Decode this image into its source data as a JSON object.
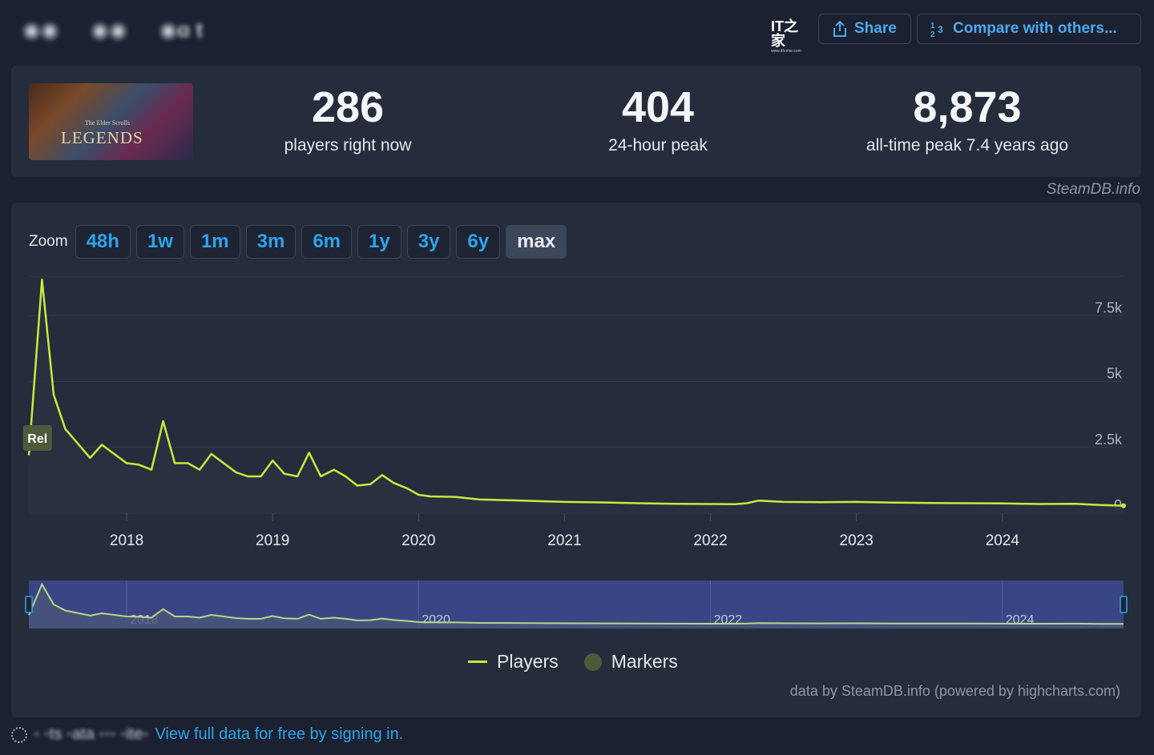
{
  "header": {
    "blurred_tabs": [
      "◉◉",
      "◉◉",
      "◉ɑ t"
    ],
    "logo_text": "IT之家",
    "logo_subtext": "www.ithome.com",
    "share_label": "Share",
    "compare_label": "Compare with others..."
  },
  "cover": {
    "title": "LEGENDS",
    "subtitle": "The Elder Scrolls"
  },
  "stats": [
    {
      "value": "286",
      "label": "players right now"
    },
    {
      "value": "404",
      "label": "24-hour peak"
    },
    {
      "value": "8,873",
      "label": "all-time peak 7.4 years ago"
    }
  ],
  "credit": "SteamDB.info",
  "zoom": {
    "label": "Zoom",
    "options": [
      "48h",
      "1w",
      "1m",
      "3m",
      "6m",
      "1y",
      "3y",
      "6y",
      "max"
    ],
    "active": "max"
  },
  "chart_data": {
    "type": "line",
    "title": "",
    "xlabel": "",
    "ylabel": "",
    "ylim": [
      0,
      9000
    ],
    "y_ticks": [
      {
        "value": 0,
        "label": "0"
      },
      {
        "value": 2500,
        "label": "2.5k"
      },
      {
        "value": 5000,
        "label": "5k"
      },
      {
        "value": 7500,
        "label": "7.5k"
      }
    ],
    "x_ticks": [
      "2018",
      "2019",
      "2020",
      "2021",
      "2022",
      "2023",
      "2024"
    ],
    "navigator_ticks": [
      "2018",
      "2020",
      "2022",
      "2024"
    ],
    "xlim": [
      2017.33,
      2024.83
    ],
    "grid": true,
    "marker": {
      "x": 2017.4,
      "label": "Rel"
    },
    "series": [
      {
        "name": "Players",
        "color": "#c5ec3c",
        "points": [
          [
            2017.33,
            2200
          ],
          [
            2017.42,
            8873
          ],
          [
            2017.5,
            4500
          ],
          [
            2017.58,
            3200
          ],
          [
            2017.75,
            2100
          ],
          [
            2017.83,
            2600
          ],
          [
            2018.0,
            1900
          ],
          [
            2018.08,
            1850
          ],
          [
            2018.17,
            1650
          ],
          [
            2018.25,
            3500
          ],
          [
            2018.33,
            1900
          ],
          [
            2018.42,
            1900
          ],
          [
            2018.5,
            1650
          ],
          [
            2018.58,
            2250
          ],
          [
            2018.75,
            1550
          ],
          [
            2018.83,
            1400
          ],
          [
            2018.92,
            1400
          ],
          [
            2019.0,
            2000
          ],
          [
            2019.08,
            1500
          ],
          [
            2019.17,
            1400
          ],
          [
            2019.25,
            2300
          ],
          [
            2019.33,
            1400
          ],
          [
            2019.42,
            1650
          ],
          [
            2019.5,
            1400
          ],
          [
            2019.58,
            1050
          ],
          [
            2019.67,
            1100
          ],
          [
            2019.75,
            1450
          ],
          [
            2019.83,
            1150
          ],
          [
            2019.92,
            950
          ],
          [
            2020.0,
            700
          ],
          [
            2020.08,
            640
          ],
          [
            2020.25,
            620
          ],
          [
            2020.42,
            520
          ],
          [
            2020.58,
            500
          ],
          [
            2020.75,
            470
          ],
          [
            2021.0,
            430
          ],
          [
            2021.25,
            410
          ],
          [
            2021.5,
            380
          ],
          [
            2021.75,
            360
          ],
          [
            2022.0,
            350
          ],
          [
            2022.17,
            340
          ],
          [
            2022.25,
            380
          ],
          [
            2022.33,
            480
          ],
          [
            2022.5,
            430
          ],
          [
            2022.75,
            420
          ],
          [
            2023.0,
            430
          ],
          [
            2023.25,
            400
          ],
          [
            2023.5,
            390
          ],
          [
            2023.75,
            380
          ],
          [
            2024.0,
            370
          ],
          [
            2024.25,
            350
          ],
          [
            2024.5,
            360
          ],
          [
            2024.67,
            310
          ],
          [
            2024.83,
            286
          ]
        ]
      }
    ],
    "legend": [
      {
        "name": "Players",
        "color": "#c5ec3c"
      },
      {
        "name": "Markers",
        "color": "#4d5a3c"
      }
    ],
    "legend_position": "bottom-center"
  },
  "footnote": "data by SteamDB.info (powered by highcharts.com)",
  "bottom": {
    "blurred_text": "◦ ◦ts ◦ata ◦◦◦ ◦ite◦",
    "link_text": "View full data for free by signing in."
  }
}
